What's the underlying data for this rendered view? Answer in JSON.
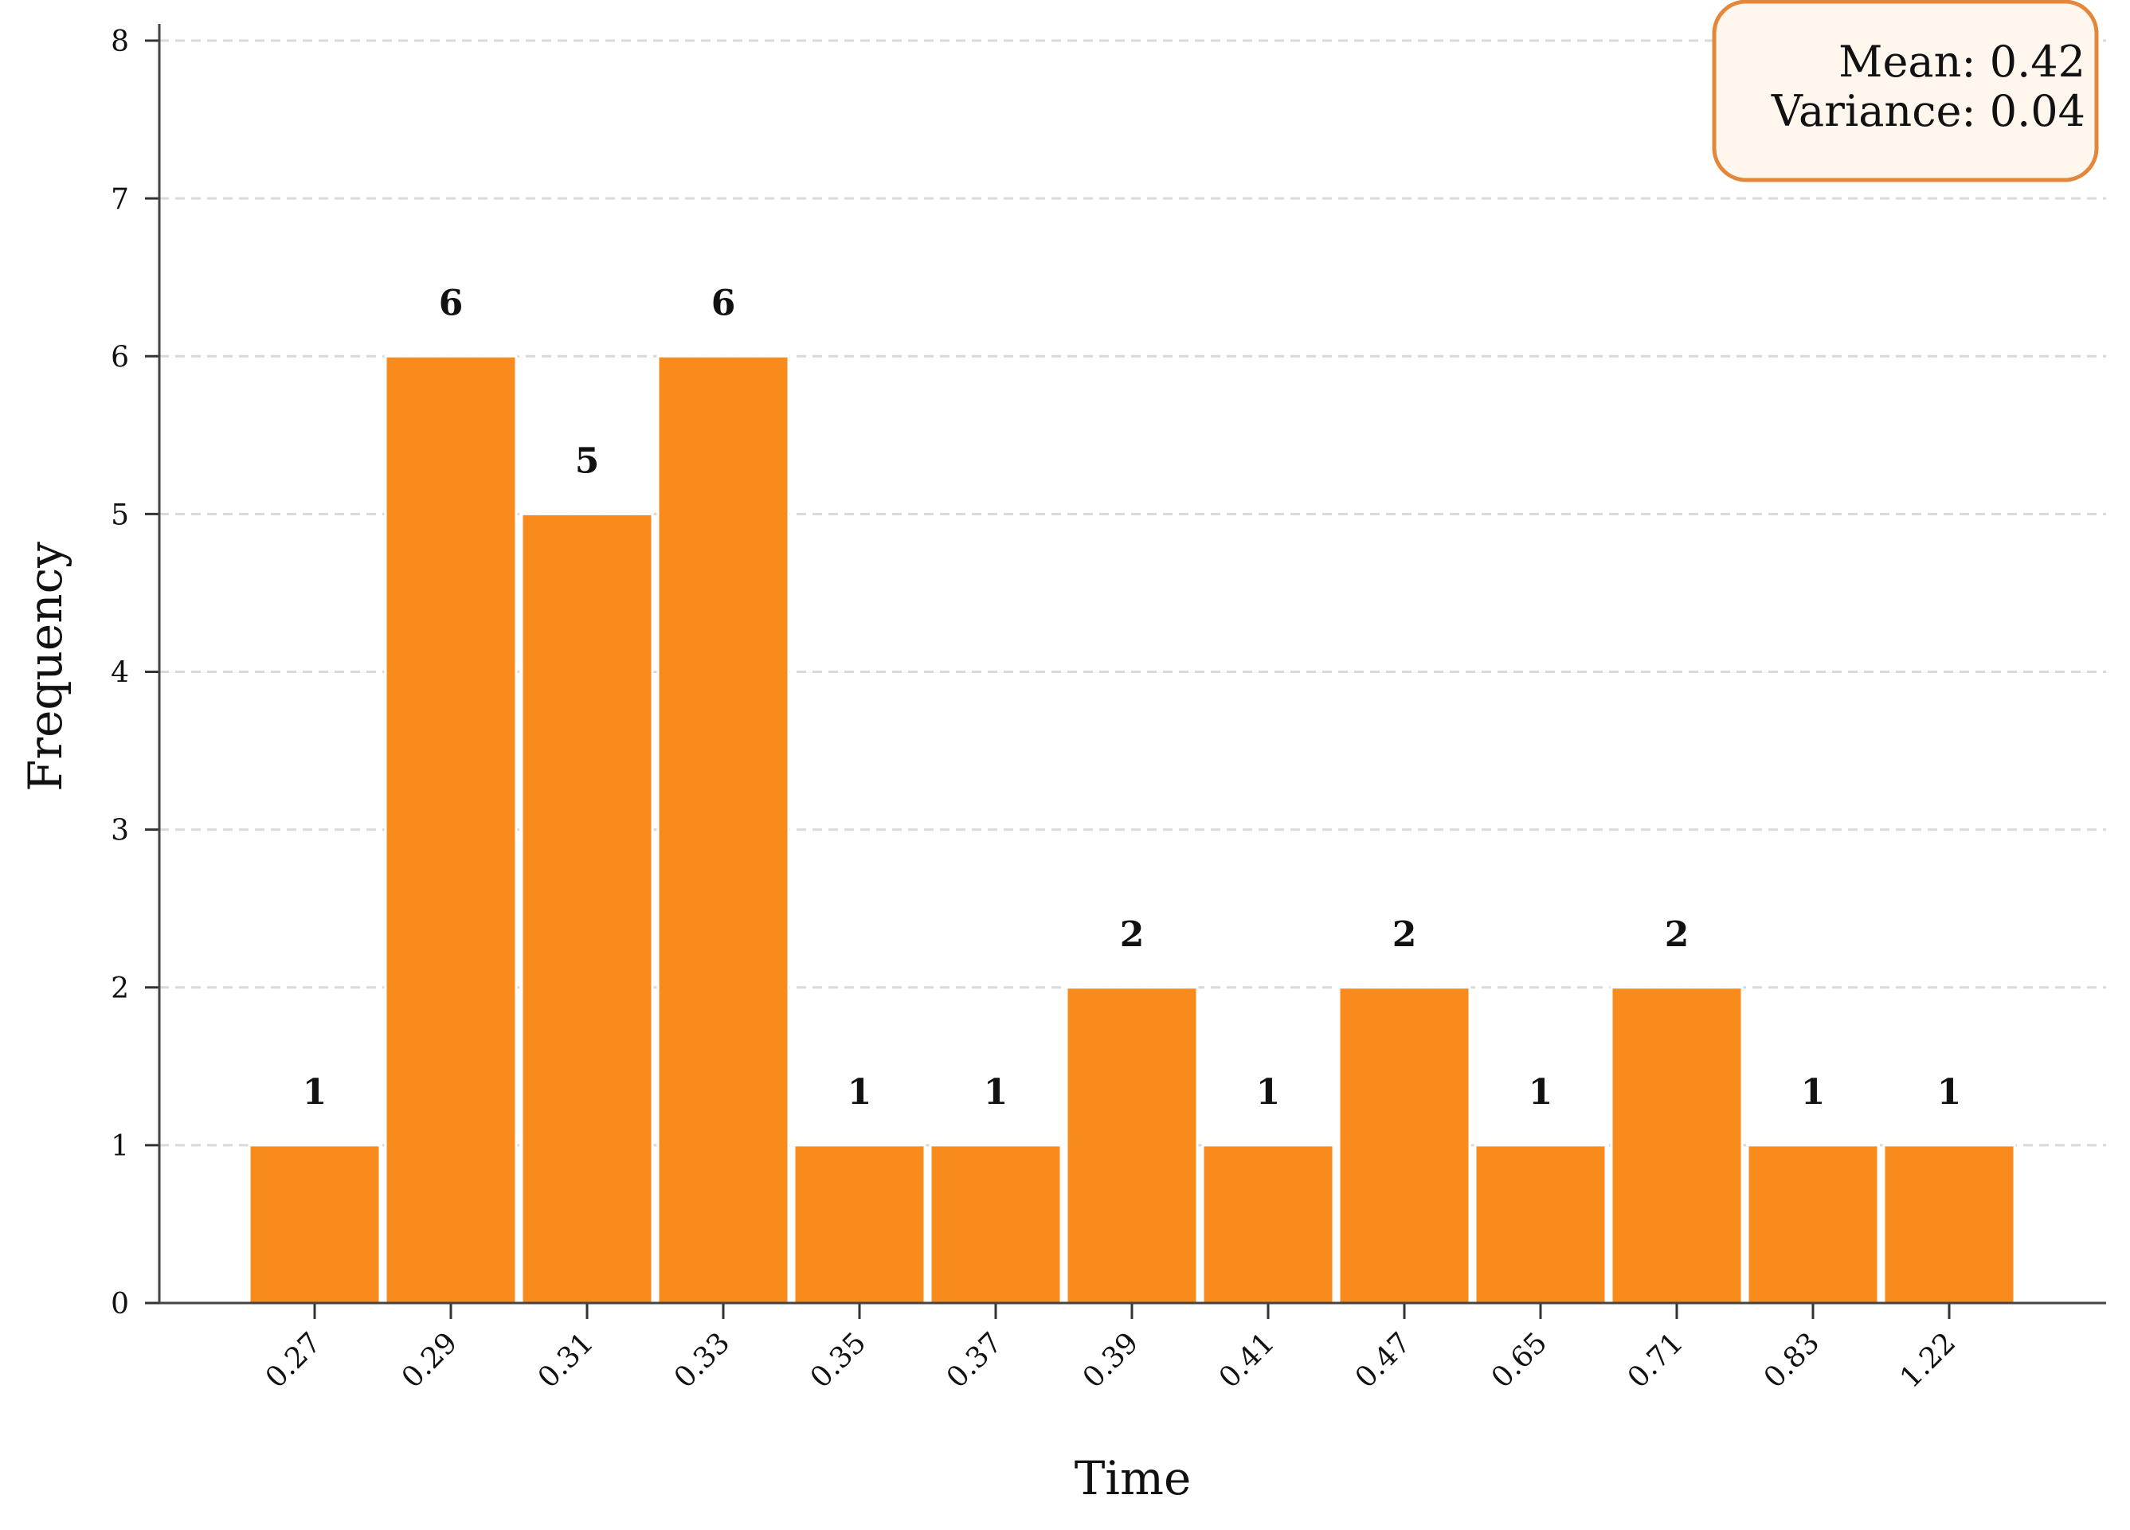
{
  "chart_data": {
    "type": "bar",
    "categories": [
      "0.27",
      "0.29",
      "0.31",
      "0.33",
      "0.35",
      "0.37",
      "0.39",
      "0.41",
      "0.47",
      "0.65",
      "0.71",
      "0.83",
      "1.22"
    ],
    "values": [
      1,
      6,
      5,
      6,
      1,
      1,
      2,
      1,
      2,
      1,
      2,
      1,
      1
    ],
    "xlabel": "Time",
    "ylabel": "Frequency",
    "ylim": [
      0,
      8
    ],
    "yticks": [
      0,
      1,
      2,
      3,
      4,
      5,
      6,
      7,
      8
    ],
    "grid": "y-dashed",
    "bar_color": "#f98b1d",
    "annotation_box": {
      "lines": [
        "Mean: 0.42",
        "Variance: 0.04"
      ],
      "placement": "top-right",
      "border_color": "#e5873a",
      "fill_color": "#fff7ee"
    }
  }
}
